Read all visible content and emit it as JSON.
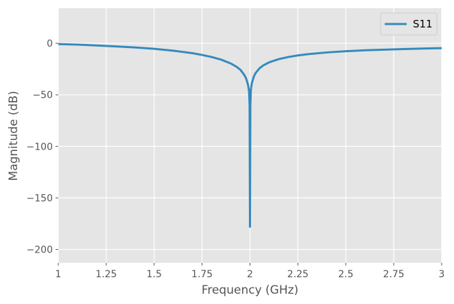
{
  "chart_data": {
    "type": "line",
    "title": "",
    "xlabel": "Frequency (GHz)",
    "ylabel": "Magnitude (dB)",
    "xlim": [
      1,
      3
    ],
    "ylim": [
      -213,
      34
    ],
    "grid": true,
    "legend_position": "top-right",
    "style": {
      "plot_background": "#e5e5e5",
      "grid_color": "#ffffff",
      "series_color": "#348abd",
      "text_color": "#555555"
    },
    "x_ticks": [
      1,
      1.25,
      1.5,
      1.75,
      2,
      2.25,
      2.5,
      2.75,
      3
    ],
    "x_tick_labels": [
      "1",
      "1.25",
      "1.5",
      "1.75",
      "2",
      "2.25",
      "2.5",
      "2.75",
      "3"
    ],
    "y_ticks": [
      0,
      -50,
      -100,
      -150,
      -200
    ],
    "y_tick_labels": [
      "0",
      "−50",
      "−100",
      "−150",
      "−200"
    ],
    "series": [
      {
        "name": "S11",
        "x": [
          1.0,
          1.1,
          1.2,
          1.3,
          1.4,
          1.5,
          1.6,
          1.7,
          1.75,
          1.8,
          1.85,
          1.9,
          1.93,
          1.95,
          1.97,
          1.98,
          1.99,
          1.995,
          1.998,
          2.0,
          2.002,
          2.005,
          2.01,
          2.02,
          2.03,
          2.05,
          2.07,
          2.1,
          2.15,
          2.2,
          2.25,
          2.3,
          2.4,
          2.5,
          2.6,
          2.7,
          2.8,
          2.9,
          3.0
        ],
        "y": [
          -0.8,
          -1.3,
          -2.1,
          -3.0,
          -4.0,
          -5.4,
          -7.2,
          -9.6,
          -11.3,
          -13.3,
          -15.9,
          -19.6,
          -22.8,
          -25.7,
          -30.6,
          -34.2,
          -40.3,
          -46.3,
          -60.0,
          -178.0,
          -60.0,
          -44.0,
          -38.6,
          -32.3,
          -28.7,
          -24.2,
          -21.4,
          -18.5,
          -15.4,
          -13.3,
          -11.8,
          -10.6,
          -8.9,
          -7.7,
          -6.8,
          -6.2,
          -5.6,
          -5.1,
          -4.7
        ]
      }
    ]
  }
}
